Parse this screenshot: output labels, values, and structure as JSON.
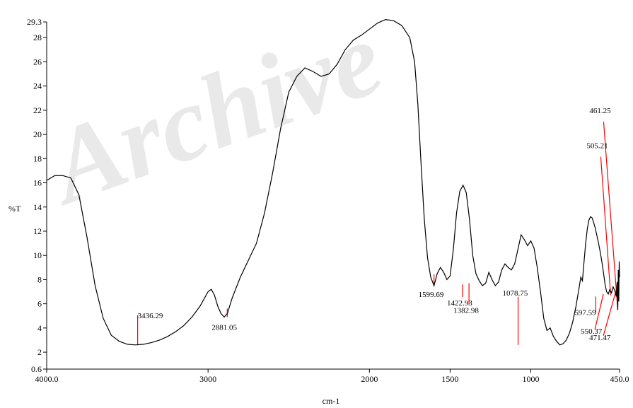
{
  "chart_data": {
    "type": "line",
    "title": "",
    "watermark": "Archive",
    "xlabel": "cm-1",
    "ylabel": "%T",
    "xlim": [
      4000.0,
      450.0
    ],
    "x_reversed": true,
    "ylim": [
      0.6,
      29.3
    ],
    "grid": false,
    "legend": "none",
    "x_ticks": [
      {
        "value": 4000,
        "label": "4000.0"
      },
      {
        "value": 3000,
        "label": "3000"
      },
      {
        "value": 2000,
        "label": "2000"
      },
      {
        "value": 1500,
        "label": "1500"
      },
      {
        "value": 1000,
        "label": "1000"
      },
      {
        "value": 450,
        "label": "450.0"
      }
    ],
    "y_ticks": [
      {
        "value": 0.6,
        "label": "0.6"
      },
      {
        "value": 2,
        "label": "2"
      },
      {
        "value": 4,
        "label": "4"
      },
      {
        "value": 6,
        "label": "6"
      },
      {
        "value": 8,
        "label": "8"
      },
      {
        "value": 10,
        "label": "10"
      },
      {
        "value": 12,
        "label": "12"
      },
      {
        "value": 14,
        "label": "14"
      },
      {
        "value": 16,
        "label": "16"
      },
      {
        "value": 18,
        "label": "18"
      },
      {
        "value": 20,
        "label": "20"
      },
      {
        "value": 22,
        "label": "22"
      },
      {
        "value": 24,
        "label": "24"
      },
      {
        "value": 26,
        "label": "26"
      },
      {
        "value": 28,
        "label": "28"
      },
      {
        "value": 29.3,
        "label": "29.3"
      }
    ],
    "series": [
      {
        "color": "#000000",
        "points": [
          [
            4000,
            16.2
          ],
          [
            3950,
            16.6
          ],
          [
            3900,
            16.6
          ],
          [
            3850,
            16.4
          ],
          [
            3800,
            15.0
          ],
          [
            3750,
            11.5
          ],
          [
            3700,
            7.5
          ],
          [
            3650,
            4.8
          ],
          [
            3600,
            3.4
          ],
          [
            3550,
            2.9
          ],
          [
            3500,
            2.65
          ],
          [
            3450,
            2.6
          ],
          [
            3400,
            2.65
          ],
          [
            3350,
            2.8
          ],
          [
            3300,
            3.0
          ],
          [
            3250,
            3.3
          ],
          [
            3200,
            3.7
          ],
          [
            3150,
            4.2
          ],
          [
            3100,
            4.9
          ],
          [
            3050,
            5.8
          ],
          [
            3000,
            7.0
          ],
          [
            2980,
            7.2
          ],
          [
            2960,
            6.7
          ],
          [
            2940,
            5.8
          ],
          [
            2920,
            5.2
          ],
          [
            2900,
            4.9
          ],
          [
            2880,
            5.2
          ],
          [
            2850,
            6.5
          ],
          [
            2800,
            8.2
          ],
          [
            2750,
            9.6
          ],
          [
            2700,
            11.0
          ],
          [
            2650,
            13.5
          ],
          [
            2600,
            16.8
          ],
          [
            2550,
            20.5
          ],
          [
            2500,
            23.5
          ],
          [
            2450,
            24.8
          ],
          [
            2400,
            25.5
          ],
          [
            2350,
            25.2
          ],
          [
            2300,
            24.8
          ],
          [
            2250,
            25.0
          ],
          [
            2200,
            25.8
          ],
          [
            2150,
            27.0
          ],
          [
            2100,
            27.8
          ],
          [
            2050,
            28.2
          ],
          [
            2000,
            28.7
          ],
          [
            1950,
            29.2
          ],
          [
            1900,
            29.5
          ],
          [
            1850,
            29.4
          ],
          [
            1800,
            29.0
          ],
          [
            1750,
            28.0
          ],
          [
            1720,
            26.0
          ],
          [
            1700,
            22.5
          ],
          [
            1680,
            17.5
          ],
          [
            1660,
            13.0
          ],
          [
            1640,
            9.8
          ],
          [
            1620,
            8.2
          ],
          [
            1600,
            7.5
          ],
          [
            1580,
            8.5
          ],
          [
            1560,
            9.0
          ],
          [
            1540,
            8.6
          ],
          [
            1520,
            8.0
          ],
          [
            1500,
            8.3
          ],
          [
            1480,
            10.5
          ],
          [
            1460,
            13.5
          ],
          [
            1440,
            15.3
          ],
          [
            1420,
            15.8
          ],
          [
            1400,
            15.2
          ],
          [
            1380,
            13.0
          ],
          [
            1360,
            10.0
          ],
          [
            1340,
            8.5
          ],
          [
            1320,
            7.9
          ],
          [
            1300,
            7.5
          ],
          [
            1280,
            7.7
          ],
          [
            1260,
            8.6
          ],
          [
            1240,
            8.0
          ],
          [
            1220,
            7.5
          ],
          [
            1200,
            7.8
          ],
          [
            1180,
            8.8
          ],
          [
            1160,
            9.3
          ],
          [
            1140,
            9.0
          ],
          [
            1120,
            8.8
          ],
          [
            1100,
            9.3
          ],
          [
            1080,
            10.5
          ],
          [
            1060,
            11.7
          ],
          [
            1040,
            11.3
          ],
          [
            1020,
            10.8
          ],
          [
            1000,
            11.2
          ],
          [
            980,
            10.6
          ],
          [
            960,
            9.0
          ],
          [
            940,
            7.0
          ],
          [
            920,
            4.8
          ],
          [
            900,
            3.8
          ],
          [
            880,
            4.0
          ],
          [
            860,
            3.3
          ],
          [
            840,
            2.9
          ],
          [
            820,
            2.6
          ],
          [
            800,
            2.7
          ],
          [
            780,
            3.0
          ],
          [
            760,
            3.6
          ],
          [
            740,
            4.5
          ],
          [
            720,
            5.8
          ],
          [
            700,
            7.4
          ],
          [
            690,
            8.2
          ],
          [
            680,
            7.9
          ],
          [
            670,
            9.5
          ],
          [
            660,
            11.0
          ],
          [
            650,
            12.2
          ],
          [
            640,
            12.9
          ],
          [
            630,
            13.2
          ],
          [
            620,
            13.1
          ],
          [
            610,
            12.7
          ],
          [
            600,
            12.2
          ],
          [
            590,
            11.6
          ],
          [
            580,
            11.0
          ],
          [
            570,
            10.3
          ],
          [
            560,
            9.5
          ],
          [
            550,
            8.6
          ],
          [
            540,
            7.6
          ],
          [
            530,
            7.0
          ],
          [
            520,
            6.8
          ],
          [
            510,
            7.2
          ],
          [
            500,
            6.9
          ],
          [
            490,
            7.4
          ],
          [
            480,
            7.1
          ],
          [
            470,
            6.6
          ],
          [
            465,
            7.8
          ],
          [
            461,
            5.5
          ],
          [
            458,
            8.8
          ],
          [
            455,
            6.2
          ],
          [
            452,
            9.5
          ],
          [
            450,
            8.2
          ]
        ]
      }
    ],
    "peaks": [
      {
        "label": "3436.29",
        "x": 3436.29,
        "y": 2.6
      },
      {
        "label": "2881.05",
        "x": 2881.05,
        "y": 4.9
      },
      {
        "label": "1599.69",
        "x": 1599.69,
        "y": 7.5
      },
      {
        "label": "1422.93",
        "x": 1422.93,
        "y": 7.6
      },
      {
        "label": "1382.98",
        "x": 1382.98,
        "y": 7.7
      },
      {
        "label": "1078.75",
        "x": 1078.75,
        "y": 2.6
      },
      {
        "label": "597.59",
        "x": 597.59,
        "y": 6.6
      },
      {
        "label": "550.37",
        "x": 550.37,
        "y": 6.8
      },
      {
        "label": "471.47",
        "x": 471.47,
        "y": 7.1
      },
      {
        "label": "505.21",
        "x": 505.21,
        "y": 6.7
      },
      {
        "label": "461.25",
        "x": 461.25,
        "y": 5.5
      }
    ],
    "colors": {
      "line": "#000000",
      "peak_marker": "#ff0000",
      "axis": "#000000"
    }
  }
}
